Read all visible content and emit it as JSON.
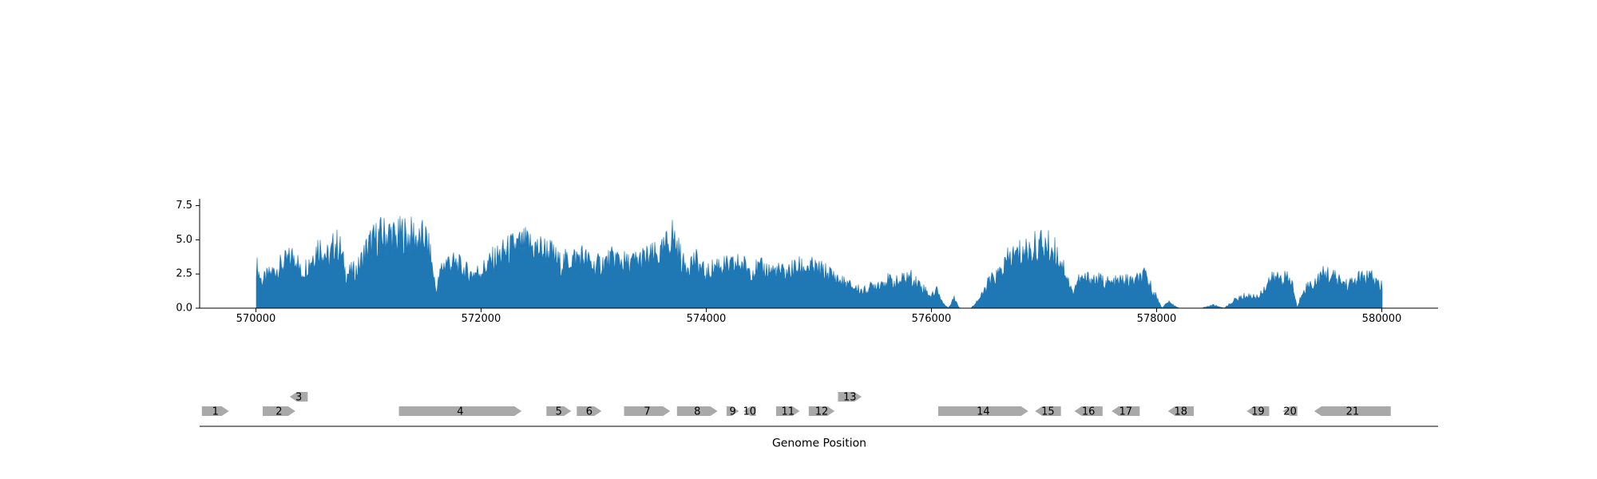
{
  "chart_data": [
    {
      "type": "area",
      "title": "",
      "xlabel": "",
      "ylabel": "",
      "xlim": [
        569500,
        580500
      ],
      "ylim": [
        0,
        8.0
      ],
      "x_ticks": [
        570000,
        572000,
        574000,
        576000,
        578000,
        580000
      ],
      "x_tick_labels": [
        "570000",
        "572000",
        "574000",
        "576000",
        "578000",
        "580000"
      ],
      "y_ticks": [
        0.0,
        2.5,
        5.0,
        7.5
      ],
      "y_tick_labels": [
        "0.0",
        "2.5",
        "5.0",
        "7.5"
      ],
      "grid": false,
      "color": "#1f77b4",
      "series": [
        {
          "x": [
            570000,
            570050,
            570100,
            570200,
            570300,
            570350,
            570400,
            570500,
            570550,
            570600,
            570650,
            570700,
            570750,
            570800,
            570900,
            570950,
            571000,
            571100,
            571200,
            571250,
            571300,
            571350,
            571400,
            571450,
            571500,
            571550,
            571600,
            571650,
            571700,
            571800,
            571900,
            572000,
            572100,
            572200,
            572300,
            572400,
            572500,
            572600,
            572700,
            572800,
            572900,
            573000,
            573100,
            573200,
            573300,
            573400,
            573500,
            573600,
            573700,
            573750,
            573800,
            573900,
            574000,
            574100,
            574200,
            574300,
            574400,
            574500,
            574600,
            574700,
            574800,
            574900,
            575000,
            575100,
            575200,
            575300,
            575400,
            575500,
            575600,
            575700,
            575800,
            575900,
            576000,
            576050,
            576100,
            576150,
            576200,
            576250,
            576300,
            576350,
            576400,
            576450,
            576500,
            576550,
            576600,
            576700,
            576800,
            576900,
            577000,
            577100,
            577150,
            577200,
            577250,
            577300,
            577400,
            577500,
            577600,
            577700,
            577800,
            577900,
            578000,
            578050,
            578100,
            578200,
            578300,
            578400,
            578500,
            578600,
            578700,
            578800,
            578900,
            579000,
            579100,
            579200,
            579250,
            579300,
            579400,
            579500,
            579600,
            579700,
            579800,
            579900,
            580000
          ],
          "values": [
            4.2,
            2.5,
            3.0,
            3.8,
            4.6,
            5.1,
            3.2,
            4.8,
            5.8,
            5.5,
            4.5,
            6.2,
            5.5,
            3.2,
            3.6,
            4.8,
            5.9,
            6.8,
            7.0,
            6.4,
            7.1,
            6.6,
            6.9,
            6.2,
            6.8,
            5.0,
            1.6,
            3.8,
            4.4,
            4.0,
            3.2,
            3.5,
            4.5,
            5.2,
            5.8,
            6.0,
            5.6,
            5.4,
            4.2,
            4.6,
            4.9,
            3.9,
            4.3,
            4.7,
            4.1,
            4.5,
            4.8,
            5.0,
            6.9,
            5.5,
            4.0,
            4.5,
            3.1,
            4.2,
            3.8,
            4.2,
            3.6,
            3.7,
            3.5,
            3.3,
            3.8,
            3.9,
            3.6,
            3.2,
            2.5,
            2.0,
            1.6,
            2.2,
            2.6,
            2.4,
            3.0,
            2.2,
            1.1,
            1.8,
            0.5,
            0.0,
            1.0,
            0.0,
            0.0,
            0.0,
            0.6,
            1.2,
            2.3,
            2.8,
            3.2,
            4.8,
            5.2,
            5.6,
            6.0,
            5.3,
            4.5,
            3.2,
            1.4,
            2.6,
            2.8,
            2.6,
            2.3,
            2.6,
            2.5,
            3.0,
            1.0,
            0.0,
            0.6,
            0.0,
            0.0,
            0.0,
            0.3,
            0.0,
            0.8,
            1.2,
            1.0,
            2.6,
            3.0,
            2.5,
            0.0,
            1.8,
            2.4,
            3.3,
            2.7,
            2.2,
            2.8,
            2.9,
            2.0
          ]
        }
      ]
    },
    {
      "type": "gene-track",
      "xlabel": "Genome Position",
      "genes": [
        {
          "label": "1",
          "start": 569520,
          "end": 569760,
          "strand": "+",
          "row": 0
        },
        {
          "label": "2",
          "start": 570060,
          "end": 570350,
          "strand": "+",
          "row": 0
        },
        {
          "label": "3",
          "start": 570300,
          "end": 570460,
          "strand": "-",
          "row": 1
        },
        {
          "label": "4",
          "start": 571270,
          "end": 572360,
          "strand": "+",
          "row": 0
        },
        {
          "label": "5",
          "start": 572580,
          "end": 572800,
          "strand": "+",
          "row": 0
        },
        {
          "label": "6",
          "start": 572850,
          "end": 573070,
          "strand": "+",
          "row": 0
        },
        {
          "label": "7",
          "start": 573270,
          "end": 573680,
          "strand": "+",
          "row": 0
        },
        {
          "label": "8",
          "start": 573740,
          "end": 574100,
          "strand": "+",
          "row": 0
        },
        {
          "label": "9",
          "start": 574180,
          "end": 574290,
          "strand": "+",
          "row": 0
        },
        {
          "label": "10",
          "start": 574330,
          "end": 574440,
          "strand": "-",
          "row": 0
        },
        {
          "label": "11",
          "start": 574620,
          "end": 574830,
          "strand": "+",
          "row": 0
        },
        {
          "label": "12",
          "start": 574910,
          "end": 575140,
          "strand": "+",
          "row": 0
        },
        {
          "label": "13",
          "start": 575170,
          "end": 575380,
          "strand": "+",
          "row": 1
        },
        {
          "label": "14",
          "start": 576060,
          "end": 576860,
          "strand": "+",
          "row": 0
        },
        {
          "label": "15",
          "start": 576920,
          "end": 577150,
          "strand": "-",
          "row": 0
        },
        {
          "label": "16",
          "start": 577270,
          "end": 577520,
          "strand": "-",
          "row": 0
        },
        {
          "label": "17",
          "start": 577600,
          "end": 577850,
          "strand": "-",
          "row": 0
        },
        {
          "label": "18",
          "start": 578100,
          "end": 578330,
          "strand": "-",
          "row": 0
        },
        {
          "label": "19",
          "start": 578800,
          "end": 579000,
          "strand": "-",
          "row": 0
        },
        {
          "label": "20",
          "start": 579120,
          "end": 579250,
          "strand": "-",
          "row": 0
        },
        {
          "label": "21",
          "start": 579400,
          "end": 580080,
          "strand": "-",
          "row": 0
        }
      ],
      "color": "#a9a9a9"
    }
  ]
}
